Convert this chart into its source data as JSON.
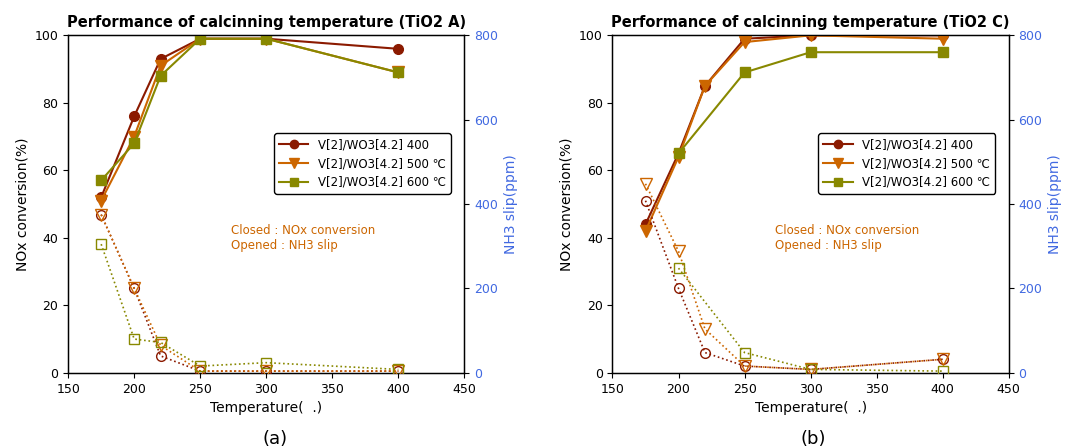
{
  "title_a": "Performance of calcinning temperature (TiO2 A)",
  "title_b": "Performance of calcinning temperature (TiO2 C)",
  "xlabel": "Temperature(  .)",
  "ylabel_left": "NOx conversion(%)",
  "ylabel_right": "NH3 slip(ppm)",
  "label_a": "(a)",
  "label_b": "(b)",
  "xlim": [
    150,
    450
  ],
  "ylim_left": [
    0,
    100
  ],
  "ylim_right": [
    0,
    800
  ],
  "xticks": [
    150,
    200,
    250,
    300,
    350,
    400,
    450
  ],
  "yticks_left": [
    0,
    20,
    40,
    60,
    80,
    100
  ],
  "yticks_right": [
    0,
    200,
    400,
    600,
    800
  ],
  "legend_labels": [
    "V[2]/WO3[4.2] 400",
    "V[2]/WO3[4.2] 500 ℃",
    "V[2]/WO3[4.2] 600 ℃"
  ],
  "annotation": "Closed : NOx conversion\nOpened : NH3 slip",
  "colors": {
    "400": "#8B1A00",
    "500": "#CC6600",
    "600": "#888800"
  },
  "chart_a": {
    "nox_400": {
      "x": [
        175,
        200,
        220,
        250,
        300,
        400
      ],
      "y": [
        52,
        76,
        93,
        99,
        99,
        96
      ]
    },
    "nox_500": {
      "x": [
        175,
        200,
        220,
        250,
        300,
        400
      ],
      "y": [
        51,
        70,
        91,
        99,
        99,
        89
      ]
    },
    "nox_600": {
      "x": [
        175,
        200,
        220,
        250,
        300,
        400
      ],
      "y": [
        57,
        68,
        88,
        99,
        99,
        89
      ]
    },
    "nh3_400": {
      "x": [
        175,
        200,
        220,
        250,
        300,
        400
      ],
      "y": [
        375,
        200,
        40,
        4,
        4,
        4
      ]
    },
    "nh3_500": {
      "x": [
        175,
        200,
        220,
        250,
        300,
        400
      ],
      "y": [
        375,
        200,
        65,
        4,
        4,
        4
      ]
    },
    "nh3_600": {
      "x": [
        175,
        200,
        220,
        250,
        300,
        400
      ],
      "y": [
        305,
        80,
        72,
        16,
        24,
        8
      ]
    }
  },
  "chart_b": {
    "nox_400": {
      "x": [
        175,
        200,
        220,
        250,
        300,
        400
      ],
      "y": [
        44,
        65,
        85,
        99,
        100,
        100
      ]
    },
    "nox_500": {
      "x": [
        175,
        200,
        220,
        250,
        300,
        400
      ],
      "y": [
        42,
        64,
        85,
        98,
        100,
        99
      ]
    },
    "nox_600": {
      "x": [
        200,
        250,
        300,
        400
      ],
      "y": [
        65,
        89,
        95,
        95
      ]
    },
    "nh3_400": {
      "x": [
        175,
        200,
        220,
        250,
        300,
        400
      ],
      "y": [
        408,
        200,
        48,
        16,
        8,
        32
      ]
    },
    "nh3_500": {
      "x": [
        175,
        200,
        220,
        250,
        300,
        400
      ],
      "y": [
        448,
        288,
        104,
        16,
        8,
        32
      ]
    },
    "nh3_600": {
      "x": [
        200,
        250,
        300,
        400
      ],
      "y": [
        248,
        48,
        8,
        4
      ]
    }
  }
}
